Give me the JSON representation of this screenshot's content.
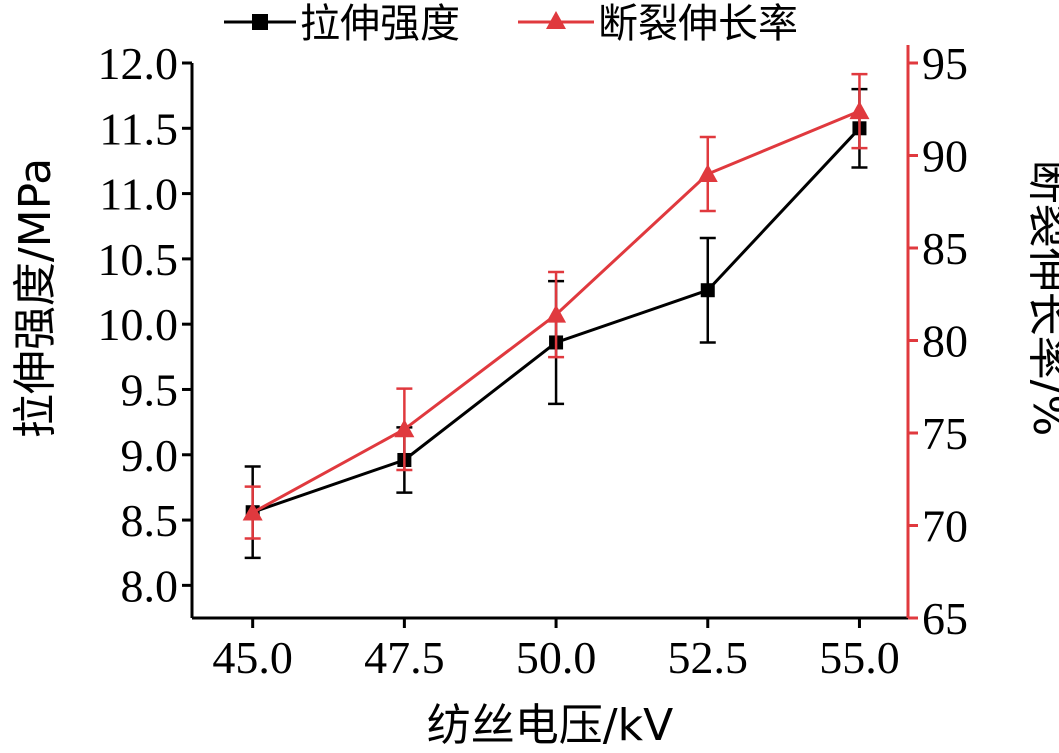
{
  "colors": {
    "tensile": "#000000",
    "elongation": "#e0393e",
    "axis": "#000000"
  },
  "chart_data": {
    "type": "line",
    "xlabel": "纺丝电压/kV",
    "ylabel_left": "拉伸强度/MPa",
    "ylabel_right": "断裂伸长率/%",
    "x": [
      45.0,
      47.5,
      50.0,
      52.5,
      55.0
    ],
    "x_tick_labels": [
      "45.0",
      "47.5",
      "50.0",
      "52.5",
      "55.0"
    ],
    "xlim": [
      44.0,
      55.8
    ],
    "ylim_left": [
      7.75,
      12.0
    ],
    "ylim_right": [
      65,
      95
    ],
    "yticks_left": [
      "8.0",
      "8.5",
      "9.0",
      "9.5",
      "10.0",
      "10.5",
      "11.0",
      "11.5",
      "12.0"
    ],
    "yticks_right": [
      "65",
      "70",
      "75",
      "80",
      "85",
      "90",
      "95"
    ],
    "grid": false,
    "legend_position": "top",
    "series": [
      {
        "name": "拉伸强度",
        "axis": "left",
        "marker": "square",
        "values": [
          8.56,
          8.96,
          9.86,
          10.26,
          11.5
        ],
        "errors": [
          0.35,
          0.25,
          0.47,
          0.4,
          0.3
        ]
      },
      {
        "name": "断裂伸长率",
        "axis": "right",
        "marker": "triangle",
        "values": [
          70.7,
          75.2,
          81.4,
          89.0,
          92.4
        ],
        "errors": [
          1.4,
          2.2,
          2.3,
          2.0,
          2.0
        ]
      }
    ]
  }
}
